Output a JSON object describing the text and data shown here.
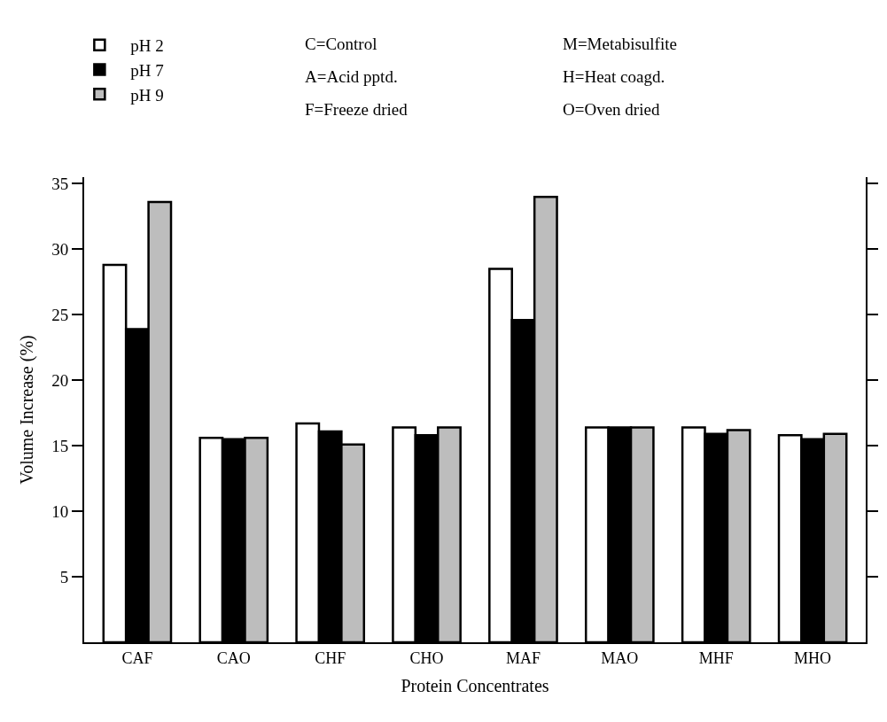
{
  "chart_data": {
    "type": "bar",
    "xlabel": "Protein Concentrates",
    "ylabel": "Volume Increase (%)",
    "categories": [
      "CAF",
      "CAO",
      "CHF",
      "CHO",
      "MAF",
      "MAO",
      "MHF",
      "MHO"
    ],
    "series": [
      {
        "name": "pH 2",
        "color": "#ffffff",
        "values": [
          28.8,
          15.6,
          16.7,
          16.4,
          28.5,
          16.4,
          16.4,
          15.8
        ]
      },
      {
        "name": "pH 7",
        "color": "#000000",
        "values": [
          23.9,
          15.5,
          16.1,
          15.8,
          24.6,
          16.4,
          15.9,
          15.5
        ]
      },
      {
        "name": "pH 9",
        "color": "#bdbdbd",
        "values": [
          33.6,
          15.6,
          15.1,
          16.4,
          34.0,
          16.4,
          16.2,
          15.9
        ]
      }
    ],
    "annotations": [
      "C=Control",
      "A=Acid pptd.",
      "F=Freeze dried",
      "M=Metabisulfite",
      "H=Heat coagd.",
      "O=Oven dried"
    ],
    "ylim": [
      0,
      35.5
    ],
    "yticks": [
      5,
      10,
      15,
      20,
      25,
      30,
      35
    ],
    "legend": "top left"
  }
}
